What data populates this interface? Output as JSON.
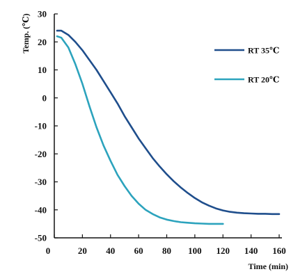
{
  "chart_data": {
    "type": "line",
    "xlabel": "Time (min)",
    "ylabel": "Temp. (℃)",
    "xlim": [
      0,
      160
    ],
    "ylim": [
      -50,
      30
    ],
    "xticks": [
      0,
      20,
      40,
      60,
      80,
      100,
      120,
      140,
      160
    ],
    "yticks": [
      30,
      20,
      10,
      0,
      -10,
      -20,
      -30,
      -40,
      -50
    ],
    "grid": false,
    "legend_position": "top-right",
    "series": [
      {
        "name": "RT 35℃",
        "color": "#1f4e8c",
        "x": [
          2,
          5,
          10,
          15,
          20,
          25,
          30,
          35,
          40,
          45,
          50,
          55,
          60,
          65,
          70,
          75,
          80,
          85,
          90,
          95,
          100,
          105,
          110,
          115,
          120,
          125,
          130,
          135,
          140,
          145,
          150,
          155,
          160
        ],
        "y": [
          24,
          24,
          22.5,
          20,
          17,
          13.5,
          10,
          6,
          2,
          -2,
          -6.5,
          -10.5,
          -14.5,
          -18,
          -21.5,
          -24.5,
          -27.3,
          -29.8,
          -32,
          -34,
          -35.8,
          -37.3,
          -38.5,
          -39.5,
          -40.2,
          -40.7,
          -41,
          -41.2,
          -41.3,
          -41.4,
          -41.4,
          -41.5,
          -41.5
        ]
      },
      {
        "name": "RT 20℃",
        "color": "#2ca3bd",
        "x": [
          2,
          5,
          10,
          15,
          20,
          25,
          30,
          35,
          40,
          45,
          50,
          55,
          60,
          65,
          70,
          75,
          80,
          85,
          90,
          95,
          100,
          105,
          110,
          115,
          120
        ],
        "y": [
          22,
          21.5,
          18,
          12,
          5,
          -3,
          -10.5,
          -17,
          -22.5,
          -27.5,
          -31.5,
          -35,
          -37.8,
          -40,
          -41.5,
          -42.7,
          -43.5,
          -44,
          -44.4,
          -44.6,
          -44.8,
          -44.9,
          -45,
          -45,
          -45
        ]
      }
    ]
  }
}
